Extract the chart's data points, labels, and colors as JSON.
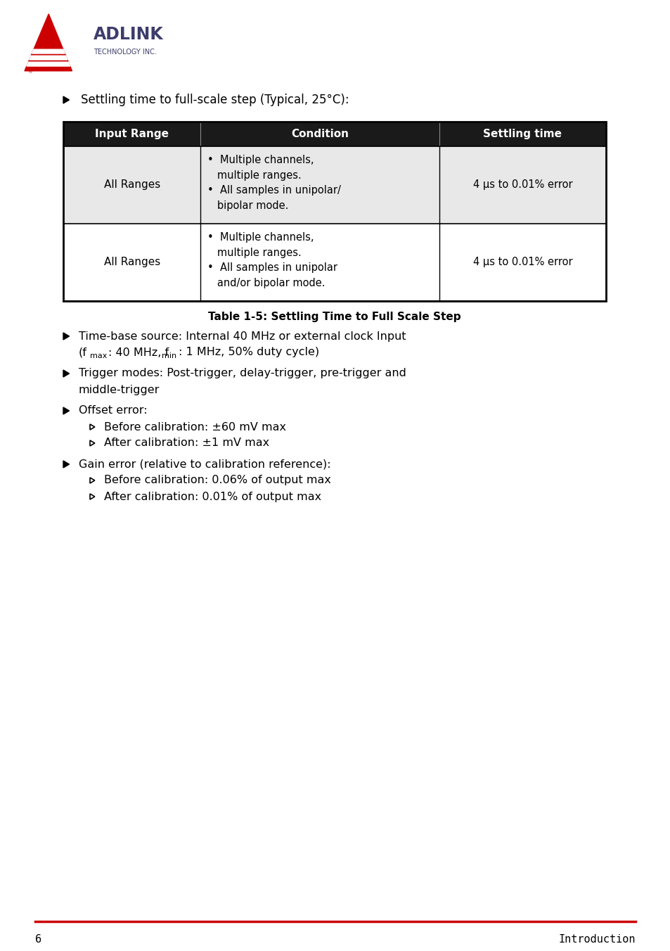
{
  "bg_color": "#ffffff",
  "page_number": "6",
  "footer_text": "Introduction",
  "footer_line_color": "#cc0000",
  "header_intro": "Settling time to full-scale step (Typical, 25°C):",
  "table_header_bg": "#1a1a1a",
  "table_row1_bg": "#e8e8e8",
  "table_row2_bg": "#ffffff",
  "table_border_color": "#000000",
  "table_caption": "Table 1-5: Settling Time to Full Scale Step",
  "col_headers": [
    "Input Range",
    "Condition",
    "Settling time"
  ],
  "row1_col1": "All Ranges",
  "row1_col2": "•  Multiple channels,\n   multiple ranges.\n•  All samples in unipolar/\n   bipolar mode.",
  "row1_col3": "4 μs to 0.01% error",
  "row2_col1": "All Ranges",
  "row2_col2": "•  Multiple channels,\n   multiple ranges.\n•  All samples in unipolar\n   and/or bipolar mode.",
  "row2_col3": "4 μs to 0.01% error"
}
